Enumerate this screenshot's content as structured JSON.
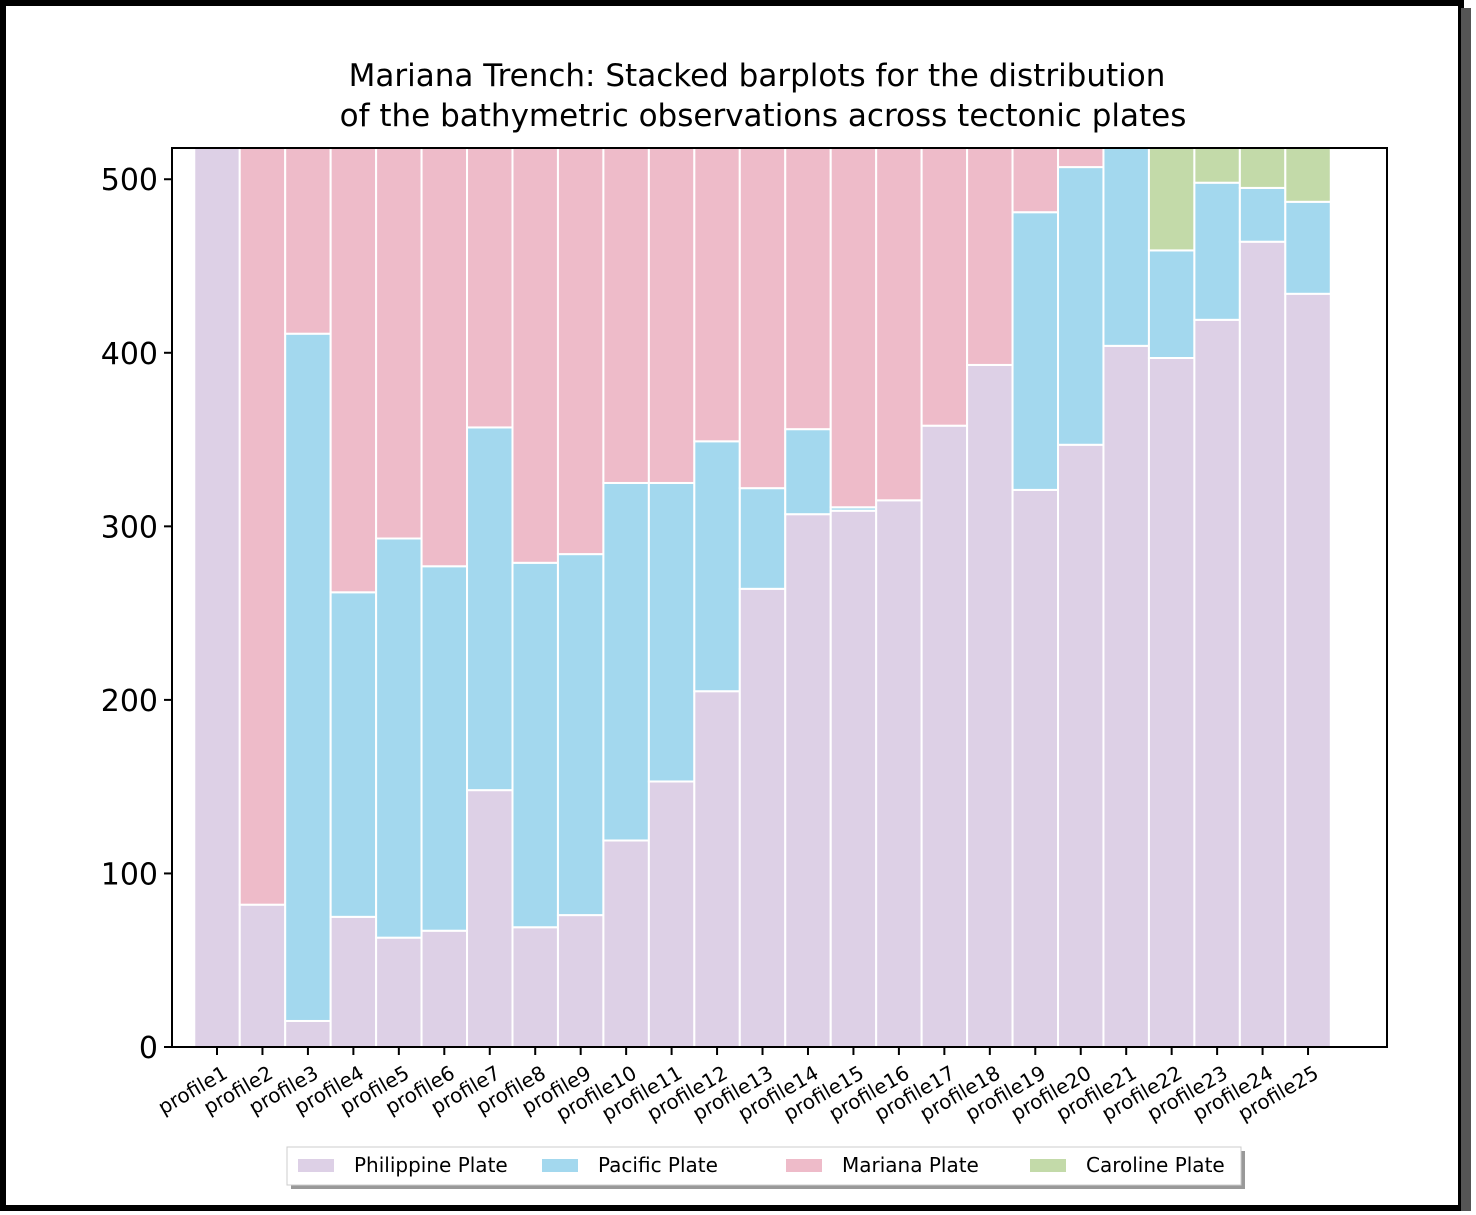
{
  "chart_data": {
    "type": "bar",
    "stacked": true,
    "title": [
      "Mariana Trench: Stacked barplots for the distribution",
      "of the bathymetric observations across tectonic plates"
    ],
    "categories": [
      "profile1",
      "profile2",
      "profile3",
      "profile4",
      "profile5",
      "profile6",
      "profile7",
      "profile8",
      "profile9",
      "profile10",
      "profile11",
      "profile12",
      "profile13",
      "profile14",
      "profile15",
      "profile16",
      "profile17",
      "profile18",
      "profile19",
      "profile20",
      "profile21",
      "profile22",
      "profile23",
      "profile24",
      "profile25"
    ],
    "series": [
      {
        "name": "Philippine Plate",
        "color": "#ddd0e6",
        "values": [
          518,
          82,
          15,
          75,
          63,
          67,
          148,
          69,
          76,
          119,
          153,
          205,
          264,
          307,
          309,
          315,
          358,
          393,
          321,
          347,
          404,
          397,
          419,
          464,
          434
        ]
      },
      {
        "name": "Pacific Plate",
        "color": "#a3d8ee",
        "values": [
          0,
          0,
          396,
          187,
          230,
          210,
          209,
          210,
          208,
          206,
          172,
          144,
          58,
          49,
          2,
          0,
          0,
          0,
          160,
          160,
          114,
          62,
          79,
          31,
          53
        ]
      },
      {
        "name": "Mariana Plate",
        "color": "#eebbc9",
        "values": [
          0,
          436,
          107,
          256,
          225,
          241,
          161,
          239,
          234,
          193,
          193,
          169,
          196,
          162,
          207,
          203,
          160,
          125,
          37,
          11,
          0,
          0,
          0,
          0,
          0
        ]
      },
      {
        "name": "Caroline Plate",
        "color": "#c3daa9",
        "values": [
          0,
          0,
          0,
          0,
          0,
          0,
          0,
          0,
          0,
          0,
          0,
          0,
          0,
          0,
          0,
          0,
          0,
          0,
          0,
          0,
          0,
          59,
          20,
          23,
          31
        ]
      }
    ],
    "ylim": [
      0,
      518
    ],
    "yticks": [
      0,
      100,
      200,
      300,
      400,
      500
    ],
    "legend": "bottom"
  }
}
